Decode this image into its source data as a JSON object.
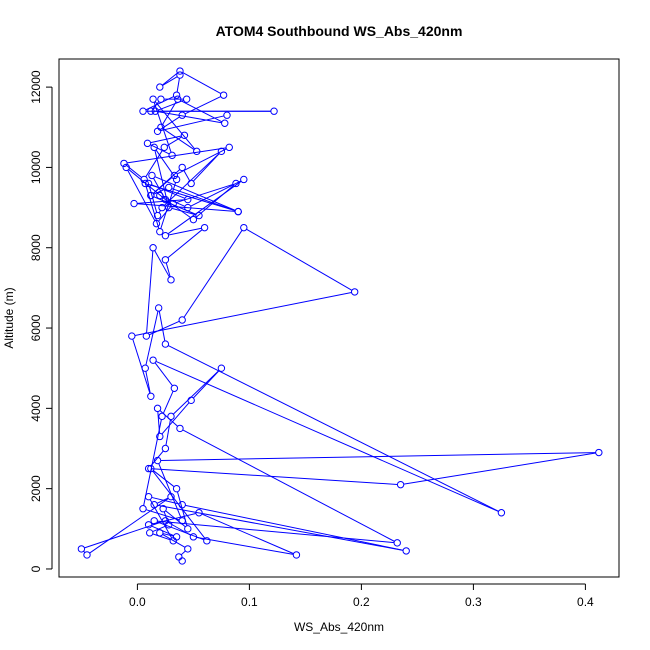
{
  "chart_data": {
    "type": "line",
    "title": "ATOM4 Southbound WS_Abs_420nm",
    "xlabel": "WS_Abs_420nm",
    "ylabel": "Altitude (m)",
    "xlim": [
      -0.07,
      0.43
    ],
    "ylim": [
      -200,
      12700
    ],
    "xticks": [
      0.0,
      0.1,
      0.2,
      0.3,
      0.4
    ],
    "xtick_labels": [
      "0.0",
      "0.1",
      "0.2",
      "0.3",
      "0.4"
    ],
    "yticks": [
      0,
      2000,
      4000,
      6000,
      8000,
      10000,
      12000
    ],
    "ytick_labels": [
      "0",
      "2000",
      "4000",
      "6000",
      "8000",
      "10000",
      "12000"
    ],
    "grid": false,
    "legend": "none",
    "marker": "open-circle",
    "color": "#0000ff",
    "series": [
      {
        "x": [
          0.04,
          0.037,
          0.045,
          0.02,
          0.035,
          0.01,
          0.055,
          0.142,
          0.05,
          0.025,
          -0.05,
          -0.045,
          0.03,
          0.015,
          0.24,
          0.04,
          0.01,
          0.032,
          0.011,
          0.028,
          0.023,
          0.045,
          0.035,
          0.012,
          0.062,
          0.015,
          0.232,
          0.038,
          0.018,
          0.02,
          0.048,
          0.075,
          0.03,
          0.025,
          0.01,
          0.235,
          0.412,
          0.018,
          0.04,
          0.005,
          0.022,
          0.033,
          0.014,
          0.325,
          0.025,
          0.019,
          0.007,
          0.012,
          -0.005,
          0.194,
          0.095,
          0.04,
          0.008,
          0.014,
          0.03,
          0.025,
          0.06,
          0.025,
          0.095,
          0.045,
          0.02,
          0.05,
          0.088,
          0.032,
          0.017,
          -0.01,
          0.025,
          0.013,
          0.09,
          0.007,
          0.02,
          0.035,
          0.015,
          0.028,
          0.055,
          0.012,
          0.04,
          0.048,
          0.075,
          0.022,
          0.018,
          0.01,
          0.045,
          -0.003,
          0.09,
          0.028,
          0.012,
          0.033,
          0.082,
          -0.012,
          0.006,
          0.024,
          0.042,
          0.009,
          0.031,
          0.014,
          0.053,
          0.021,
          0.036,
          0.078,
          0.016,
          0.044,
          0.021,
          0.012,
          0.122,
          0.005,
          0.035,
          0.038,
          0.02,
          0.038,
          0.077,
          0.04,
          0.018,
          0.08
        ],
        "y": [
          200,
          300,
          500,
          900,
          800,
          1100,
          1400,
          350,
          800,
          1200,
          500,
          350,
          1800,
          1600,
          450,
          1600,
          1800,
          700,
          900,
          1100,
          1500,
          1000,
          2000,
          2500,
          700,
          1200,
          650,
          3500,
          4000,
          3300,
          4200,
          5000,
          3800,
          3000,
          2500,
          2100,
          2900,
          2700,
          1200,
          1500,
          3800,
          4500,
          5200,
          1400,
          5600,
          6500,
          5000,
          4300,
          5800,
          6900,
          8500,
          6200,
          5800,
          8000,
          7200,
          7700,
          8500,
          8300,
          9700,
          9000,
          9300,
          8700,
          9600,
          9100,
          8600,
          10000,
          9200,
          9800,
          8900,
          9600,
          8400,
          9700,
          10500,
          9000,
          8800,
          9300,
          10000,
          9600,
          10400,
          9000,
          8800,
          9600,
          9200,
          9100,
          8900,
          9500,
          9300,
          9800,
          10500,
          10100,
          9700,
          10500,
          10800,
          10600,
          10300,
          11700,
          10400,
          11000,
          11700,
          11100,
          11400,
          11700,
          11700,
          11400,
          11400,
          11400,
          11800,
          12300,
          12000,
          12400,
          11800,
          11300,
          10900,
          11300
        ]
      }
    ]
  }
}
